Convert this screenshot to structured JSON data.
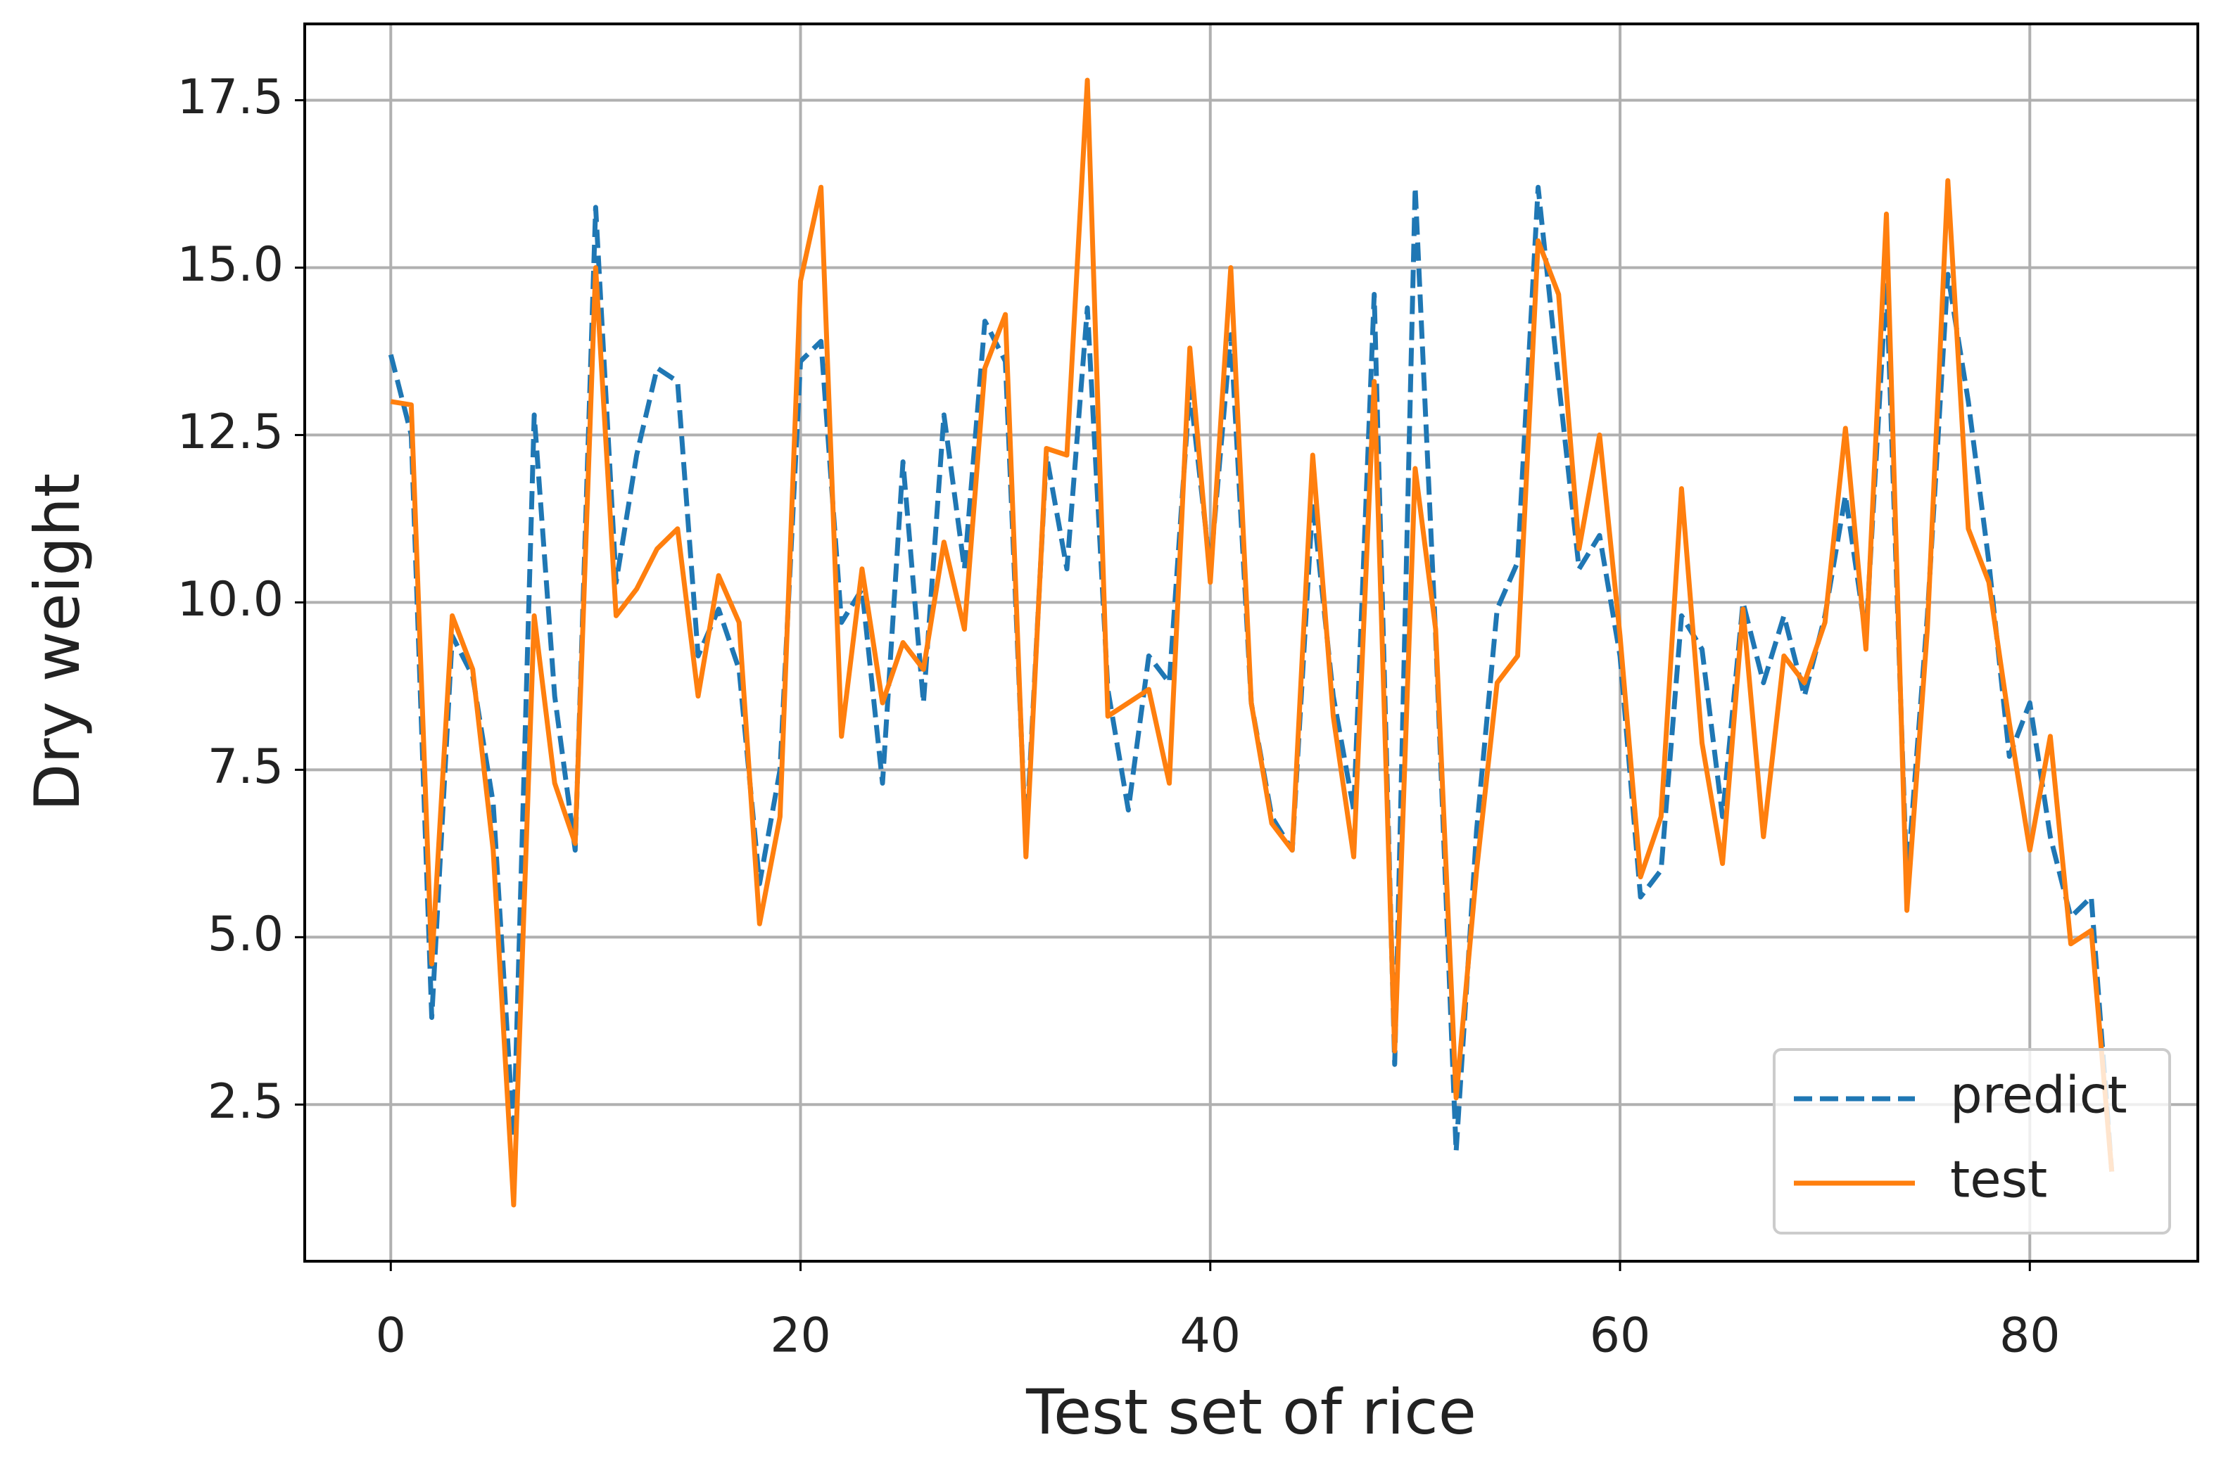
{
  "chart_data": {
    "type": "line",
    "xlabel": "Test set of rice",
    "ylabel": "Dry weight",
    "x": [
      0,
      1,
      2,
      3,
      4,
      5,
      6,
      7,
      8,
      9,
      10,
      11,
      12,
      13,
      14,
      15,
      16,
      17,
      18,
      19,
      20,
      21,
      22,
      23,
      24,
      25,
      26,
      27,
      28,
      29,
      30,
      31,
      32,
      33,
      34,
      35,
      36,
      37,
      38,
      39,
      40,
      41,
      42,
      43,
      44,
      45,
      46,
      47,
      48,
      49,
      50,
      51,
      52,
      53,
      54,
      55,
      56,
      57,
      58,
      59,
      60,
      61,
      62,
      63,
      64,
      65,
      66,
      67,
      68,
      69,
      70,
      71,
      72,
      73,
      74,
      75,
      76,
      77,
      78,
      79,
      80,
      81,
      82,
      83,
      84
    ],
    "series": [
      {
        "name": "predict",
        "color": "#1f77b4",
        "linestyle": "dashed",
        "values": [
          13.7,
          12.5,
          3.8,
          9.5,
          8.9,
          7.0,
          2.0,
          12.8,
          8.6,
          6.3,
          15.9,
          10.3,
          12.2,
          13.5,
          13.3,
          9.2,
          9.9,
          9.0,
          5.8,
          7.5,
          13.6,
          13.9,
          9.7,
          10.2,
          7.3,
          12.1,
          8.5,
          12.8,
          10.5,
          14.2,
          13.6,
          6.4,
          12.2,
          10.5,
          14.4,
          8.7,
          6.9,
          9.2,
          8.8,
          13.2,
          10.5,
          14.0,
          8.5,
          6.8,
          6.3,
          11.5,
          8.6,
          6.9,
          14.6,
          3.1,
          16.2,
          9.5,
          1.8,
          6.6,
          9.9,
          10.6,
          16.2,
          13.3,
          10.5,
          11.0,
          9.2,
          5.6,
          6.0,
          9.8,
          9.3,
          6.8,
          10.0,
          8.8,
          9.8,
          8.6,
          9.8,
          11.6,
          9.5,
          14.8,
          5.8,
          9.8,
          14.9,
          13.0,
          10.6,
          7.7,
          8.5,
          6.5,
          5.3,
          5.6,
          1.5
        ]
      },
      {
        "name": "test",
        "color": "#ff7f0e",
        "linestyle": "solid",
        "values": [
          13.0,
          12.95,
          4.6,
          9.8,
          9.0,
          6.3,
          1.0,
          9.8,
          7.3,
          6.4,
          15.0,
          9.8,
          10.2,
          10.8,
          11.1,
          8.6,
          10.4,
          9.7,
          5.2,
          6.8,
          14.8,
          16.2,
          8.0,
          10.5,
          8.5,
          9.4,
          9.0,
          10.9,
          9.6,
          13.5,
          14.3,
          6.2,
          12.3,
          12.2,
          17.8,
          8.3,
          8.5,
          8.7,
          7.3,
          13.8,
          10.3,
          15.0,
          8.5,
          6.7,
          6.3,
          12.2,
          8.3,
          6.2,
          13.3,
          3.3,
          12.0,
          9.6,
          2.6,
          6.0,
          8.8,
          9.2,
          15.4,
          14.6,
          10.8,
          12.5,
          9.5,
          5.9,
          6.8,
          11.7,
          7.9,
          6.1,
          9.9,
          6.5,
          9.2,
          8.8,
          9.7,
          12.6,
          9.3,
          15.8,
          5.4,
          9.6,
          16.3,
          11.1,
          10.3,
          8.2,
          6.3,
          8.0,
          4.9,
          5.1,
          1.5
        ]
      }
    ],
    "xlim": [
      -4.2,
      88.2
    ],
    "xticks": [
      0,
      20,
      40,
      60,
      80
    ],
    "ylim": [
      0.16,
      18.64
    ],
    "yticks": [
      2.5,
      {
        "value": 5,
        "label": "5.0"
      },
      7.5,
      {
        "value": 10,
        "label": "10.0"
      },
      12.5,
      {
        "value": 15,
        "label": "15.0"
      },
      17.5
    ],
    "grid": true,
    "legend": "lower right"
  }
}
